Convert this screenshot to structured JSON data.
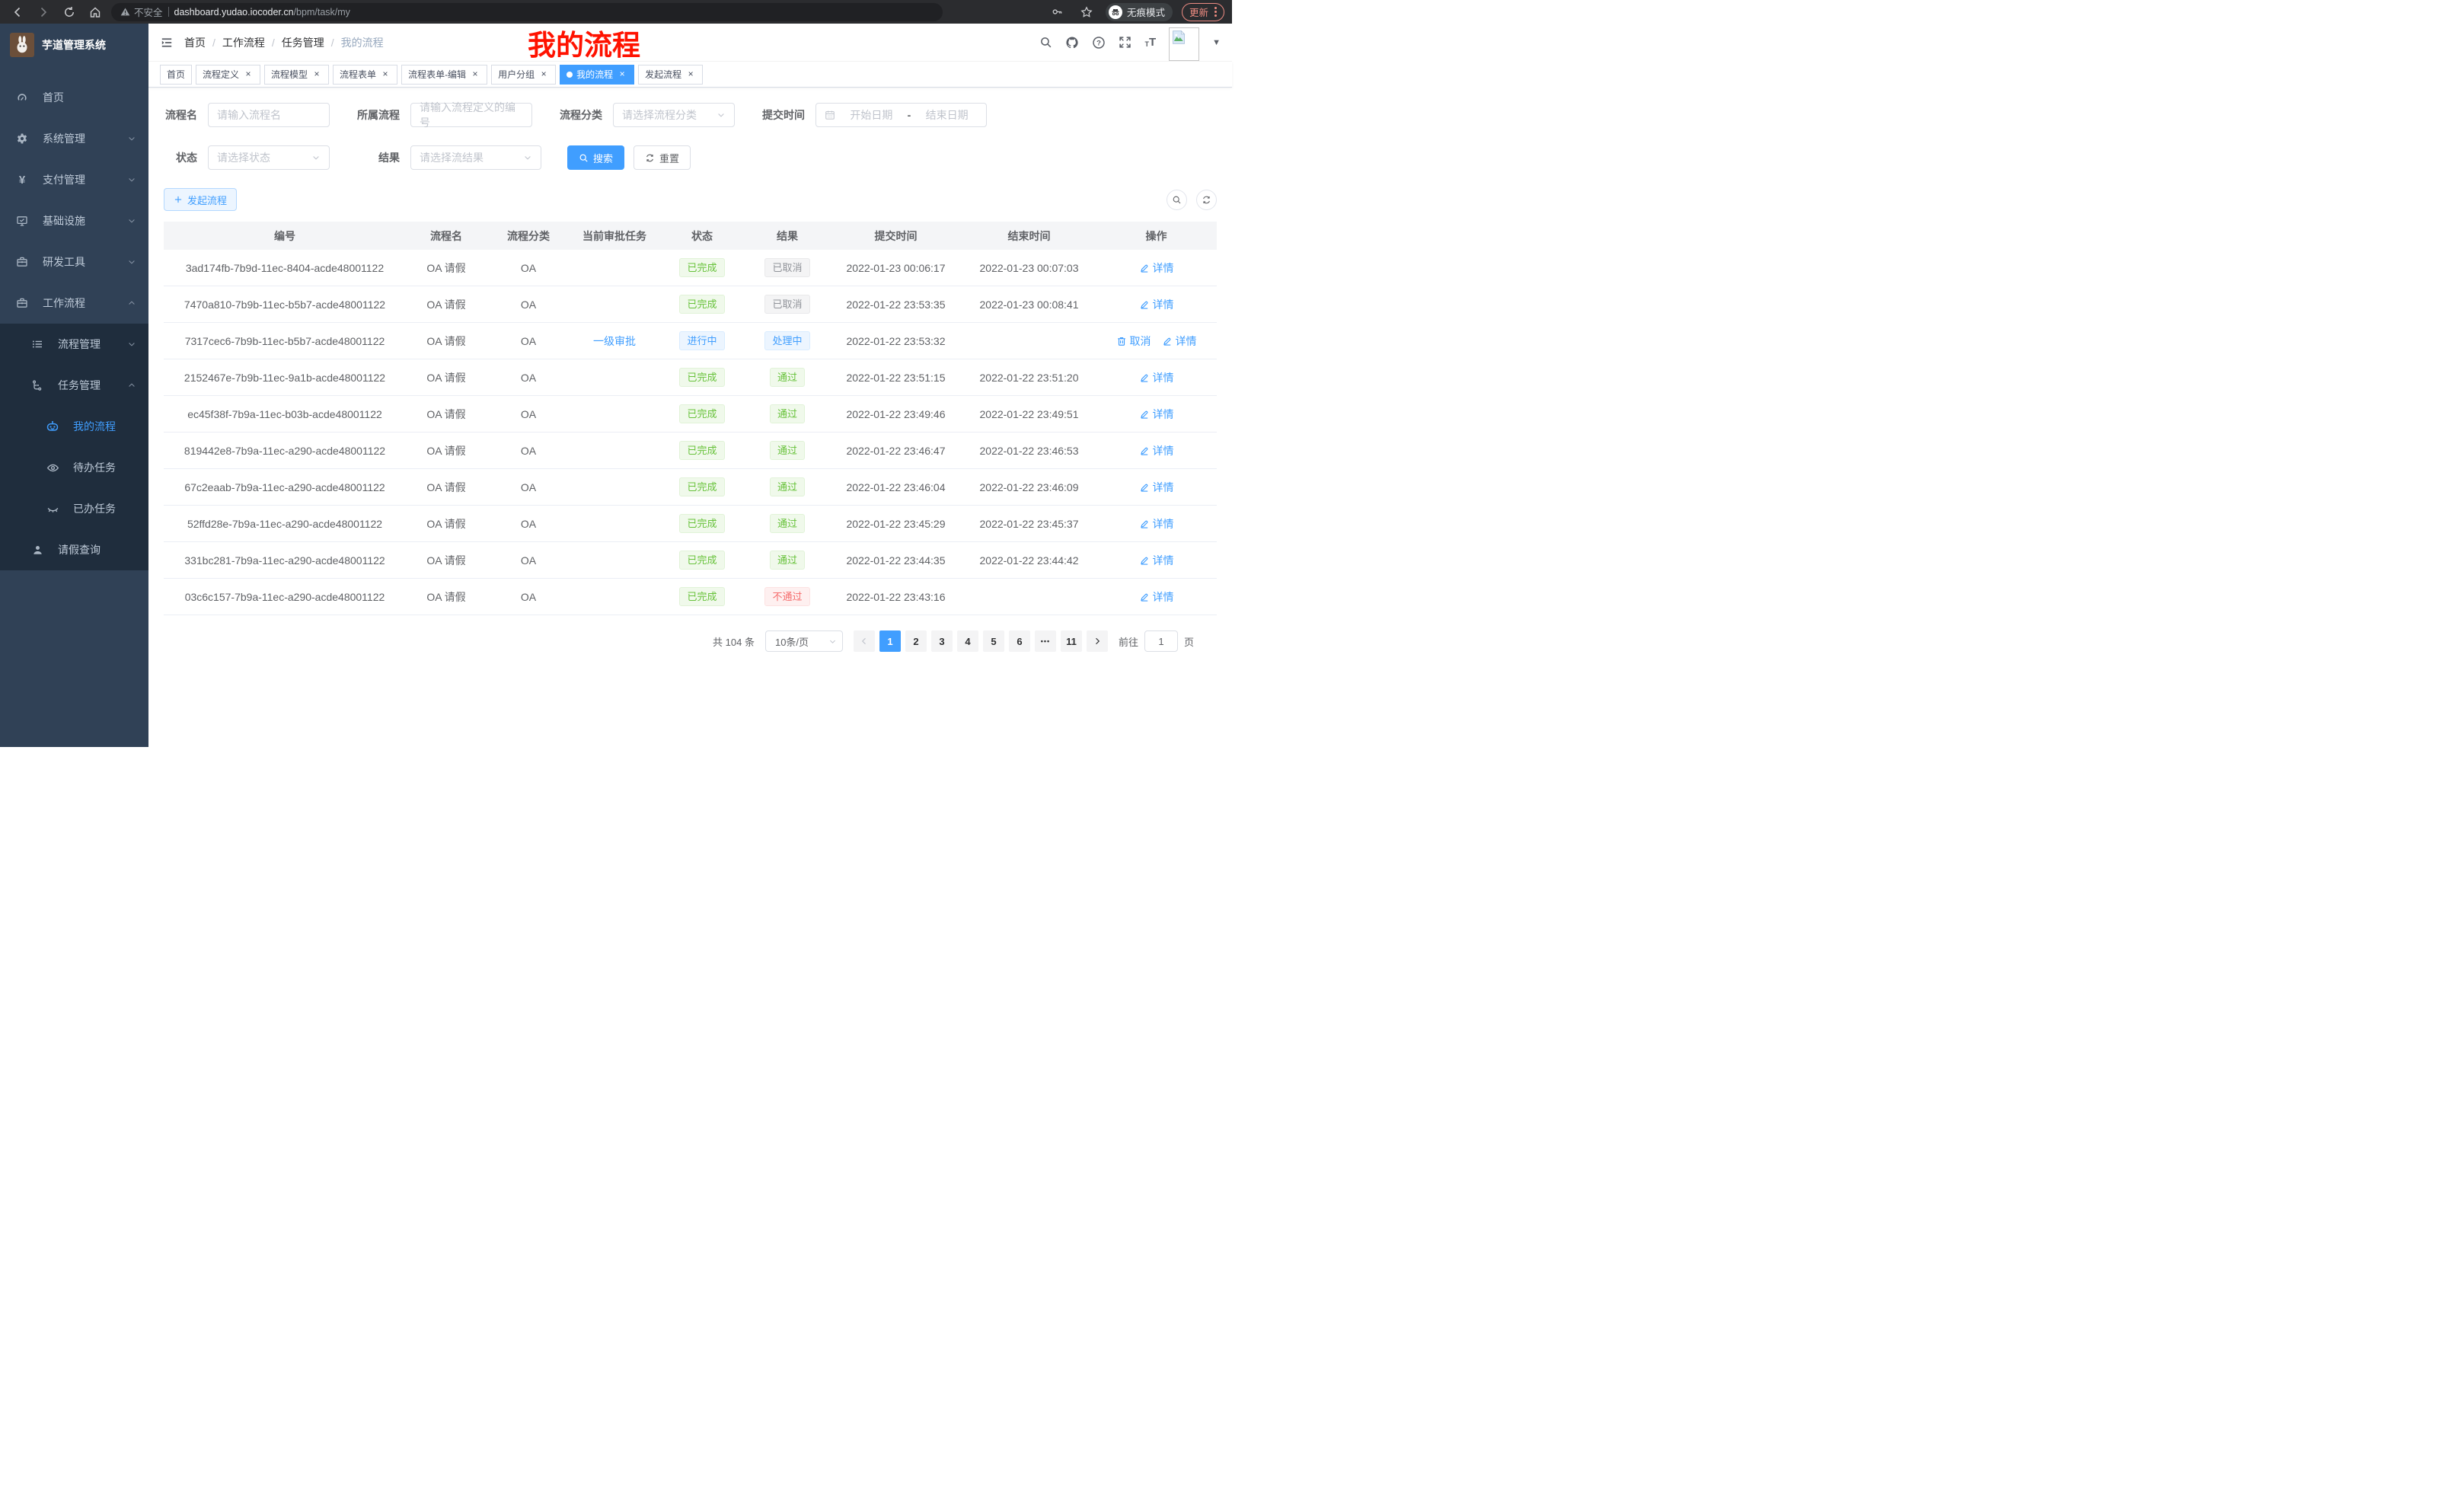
{
  "browser": {
    "security_label": "不安全",
    "url_host": "dashboard.yudao.iocoder.cn",
    "url_path": "/bpm/task/my",
    "incognito_label": "无痕模式",
    "update_label": "更新"
  },
  "sidebar": {
    "title": "芋道管理系统",
    "items": [
      {
        "label": "首页",
        "icon": "dashboard",
        "indent": 0
      },
      {
        "label": "系统管理",
        "icon": "gear",
        "indent": 0,
        "arrow": "down"
      },
      {
        "label": "支付管理",
        "icon": "yen",
        "indent": 0,
        "arrow": "down"
      },
      {
        "label": "基础设施",
        "icon": "monitor",
        "indent": 0,
        "arrow": "down"
      },
      {
        "label": "研发工具",
        "icon": "toolbox",
        "indent": 0,
        "arrow": "down"
      },
      {
        "label": "工作流程",
        "icon": "briefcase",
        "indent": 0,
        "arrow": "up"
      },
      {
        "label": "流程管理",
        "icon": "list",
        "indent": 1,
        "arrow": "down",
        "dark": true
      },
      {
        "label": "任务管理",
        "icon": "flow",
        "indent": 1,
        "arrow": "up",
        "dark": true
      },
      {
        "label": "我的流程",
        "icon": "robot",
        "indent": 2,
        "dark": true,
        "active": true
      },
      {
        "label": "待办任务",
        "icon": "eye",
        "indent": 2,
        "dark": true
      },
      {
        "label": "已办任务",
        "icon": "eye-closed",
        "indent": 2,
        "dark": true
      },
      {
        "label": "请假查询",
        "icon": "user",
        "indent": 1,
        "dark": true
      }
    ]
  },
  "header": {
    "breadcrumb": [
      "首页",
      "工作流程",
      "任务管理",
      "我的流程"
    ],
    "annotation": "我的流程"
  },
  "tabs": [
    {
      "label": "首页"
    },
    {
      "label": "流程定义",
      "closable": true
    },
    {
      "label": "流程模型",
      "closable": true
    },
    {
      "label": "流程表单",
      "closable": true
    },
    {
      "label": "流程表单-编辑",
      "closable": true
    },
    {
      "label": "用户分组",
      "closable": true
    },
    {
      "label": "我的流程",
      "closable": true,
      "active": true
    },
    {
      "label": "发起流程",
      "closable": true
    }
  ],
  "filters": {
    "row1": [
      {
        "label": "流程名",
        "placeholder": "请输入流程名"
      },
      {
        "label": "所属流程",
        "placeholder": "请输入流程定义的编号"
      },
      {
        "label": "流程分类",
        "placeholder": "请选择流程分类"
      },
      {
        "label": "提交时间",
        "start": "开始日期",
        "separator": "-",
        "end": "结束日期"
      }
    ],
    "row2": [
      {
        "label": "状态",
        "placeholder": "请选择状态"
      },
      {
        "label": "结果",
        "placeholder": "请选择流结果"
      }
    ],
    "search_label": "搜索",
    "reset_label": "重置"
  },
  "toolbar": {
    "create_label": "发起流程"
  },
  "table": {
    "columns": [
      "编号",
      "流程名",
      "流程分类",
      "当前审批任务",
      "状态",
      "结果",
      "提交时间",
      "结束时间",
      "操作"
    ],
    "rows": [
      {
        "id": "3ad174fb-7b9d-11ec-8404-acde48001122",
        "name": "OA 请假",
        "category": "OA",
        "task": "",
        "status": "已完成",
        "status_type": "success",
        "result": "已取消",
        "result_type": "info",
        "submit_time": "2022-01-23 00:06:17",
        "end_time": "2022-01-23 00:07:03",
        "actions": [
          {
            "type": "detail",
            "label": "详情"
          }
        ]
      },
      {
        "id": "7470a810-7b9b-11ec-b5b7-acde48001122",
        "name": "OA 请假",
        "category": "OA",
        "task": "",
        "status": "已完成",
        "status_type": "success",
        "result": "已取消",
        "result_type": "info",
        "submit_time": "2022-01-22 23:53:35",
        "end_time": "2022-01-23 00:08:41",
        "actions": [
          {
            "type": "detail",
            "label": "详情"
          }
        ]
      },
      {
        "id": "7317cec6-7b9b-11ec-b5b7-acde48001122",
        "name": "OA 请假",
        "category": "OA",
        "task": "一级审批",
        "status": "进行中",
        "status_type": "primary",
        "result": "处理中",
        "result_type": "primary",
        "submit_time": "2022-01-22 23:53:32",
        "end_time": "",
        "actions": [
          {
            "type": "cancel",
            "label": "取消"
          },
          {
            "type": "detail",
            "label": "详情"
          }
        ]
      },
      {
        "id": "2152467e-7b9b-11ec-9a1b-acde48001122",
        "name": "OA 请假",
        "category": "OA",
        "task": "",
        "status": "已完成",
        "status_type": "success",
        "result": "通过",
        "result_type": "success",
        "submit_time": "2022-01-22 23:51:15",
        "end_time": "2022-01-22 23:51:20",
        "actions": [
          {
            "type": "detail",
            "label": "详情"
          }
        ]
      },
      {
        "id": "ec45f38f-7b9a-11ec-b03b-acde48001122",
        "name": "OA 请假",
        "category": "OA",
        "task": "",
        "status": "已完成",
        "status_type": "success",
        "result": "通过",
        "result_type": "success",
        "submit_time": "2022-01-22 23:49:46",
        "end_time": "2022-01-22 23:49:51",
        "actions": [
          {
            "type": "detail",
            "label": "详情"
          }
        ]
      },
      {
        "id": "819442e8-7b9a-11ec-a290-acde48001122",
        "name": "OA 请假",
        "category": "OA",
        "task": "",
        "status": "已完成",
        "status_type": "success",
        "result": "通过",
        "result_type": "success",
        "submit_time": "2022-01-22 23:46:47",
        "end_time": "2022-01-22 23:46:53",
        "actions": [
          {
            "type": "detail",
            "label": "详情"
          }
        ]
      },
      {
        "id": "67c2eaab-7b9a-11ec-a290-acde48001122",
        "name": "OA 请假",
        "category": "OA",
        "task": "",
        "status": "已完成",
        "status_type": "success",
        "result": "通过",
        "result_type": "success",
        "submit_time": "2022-01-22 23:46:04",
        "end_time": "2022-01-22 23:46:09",
        "actions": [
          {
            "type": "detail",
            "label": "详情"
          }
        ]
      },
      {
        "id": "52ffd28e-7b9a-11ec-a290-acde48001122",
        "name": "OA 请假",
        "category": "OA",
        "task": "",
        "status": "已完成",
        "status_type": "success",
        "result": "通过",
        "result_type": "success",
        "submit_time": "2022-01-22 23:45:29",
        "end_time": "2022-01-22 23:45:37",
        "actions": [
          {
            "type": "detail",
            "label": "详情"
          }
        ]
      },
      {
        "id": "331bc281-7b9a-11ec-a290-acde48001122",
        "name": "OA 请假",
        "category": "OA",
        "task": "",
        "status": "已完成",
        "status_type": "success",
        "result": "通过",
        "result_type": "success",
        "submit_time": "2022-01-22 23:44:35",
        "end_time": "2022-01-22 23:44:42",
        "actions": [
          {
            "type": "detail",
            "label": "详情"
          }
        ]
      },
      {
        "id": "03c6c157-7b9a-11ec-a290-acde48001122",
        "name": "OA 请假",
        "category": "OA",
        "task": "",
        "status": "已完成",
        "status_type": "success",
        "result": "不通过",
        "result_type": "danger",
        "submit_time": "2022-01-22 23:43:16",
        "end_time": "",
        "actions": [
          {
            "type": "detail",
            "label": "详情"
          }
        ]
      }
    ]
  },
  "pagination": {
    "total": "共 104 条",
    "page_size": "10条/页",
    "pages": [
      "1",
      "2",
      "3",
      "4",
      "5",
      "6",
      "•••",
      "11"
    ],
    "active_page": "1",
    "goto_label": "前往",
    "goto_value": "1",
    "goto_suffix": "页"
  },
  "colors": {
    "accent": "#409eff",
    "success": "#67c23a",
    "danger": "#f56c6c",
    "info": "#909399",
    "sidebar_bg": "#304156",
    "sidebar_sub_bg": "#1f2d3d",
    "annotation": "#ff1200"
  }
}
